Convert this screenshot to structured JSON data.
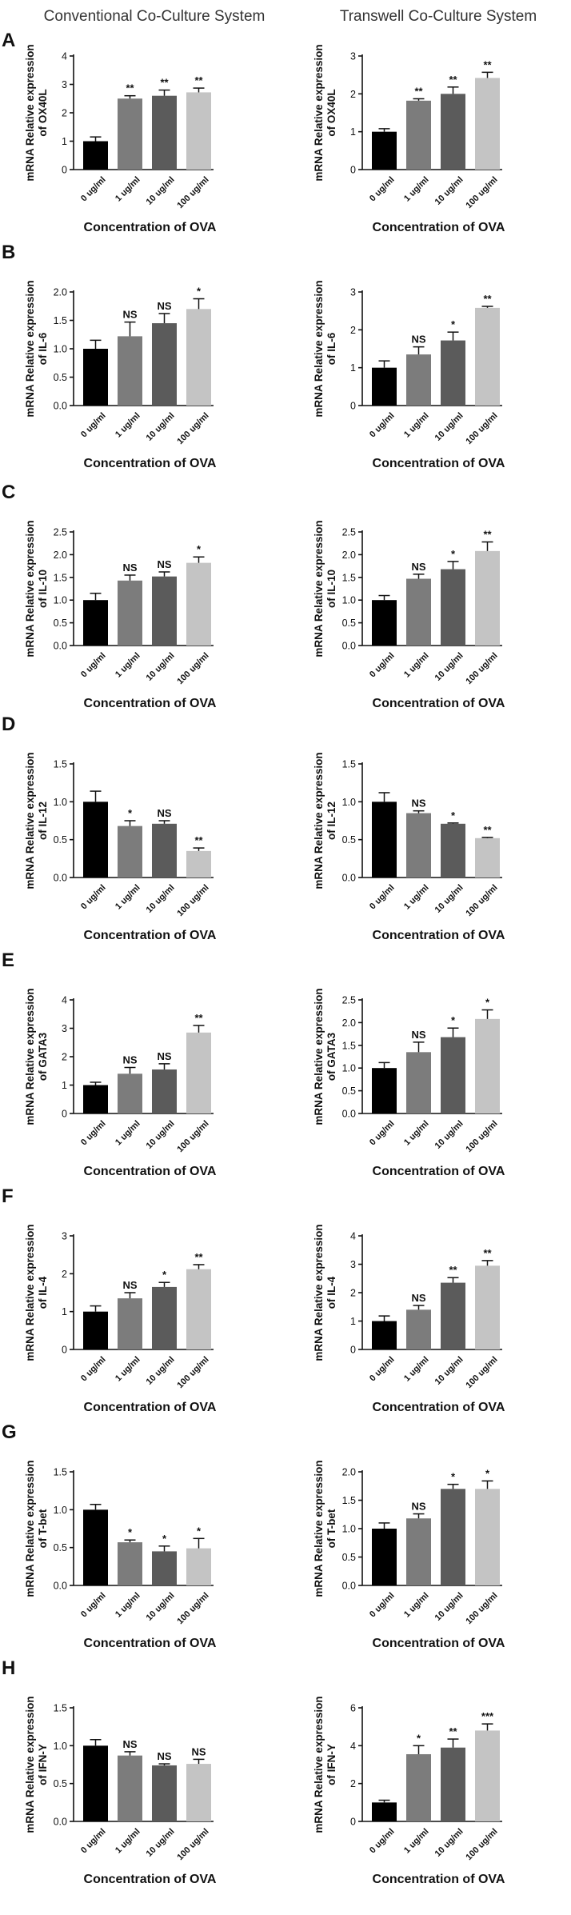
{
  "column_titles": [
    "Conventional Co-Culture System",
    "Transwell Co-Culture System"
  ],
  "colors": [
    "#000000",
    "#7c7c7c",
    "#5b5b5b",
    "#c4c4c4"
  ],
  "chart_data": [
    {
      "panel": "A",
      "type": "bar",
      "title": "Conventional Co-Culture System",
      "ylabel": "mRNA Relative expression of OX40L",
      "xlabel": "Concentration of OVA",
      "categories": [
        "0 ug/ml",
        "1 ug/ml",
        "10 ug/ml",
        "100 ug/ml"
      ],
      "values": [
        1.0,
        2.5,
        2.6,
        2.72
      ],
      "errors": [
        0.15,
        0.1,
        0.2,
        0.15
      ],
      "significance": [
        "",
        "**",
        "**",
        "**"
      ],
      "ylim": [
        0,
        4
      ],
      "yticks": [
        "0",
        "1",
        "2",
        "3",
        "4"
      ]
    },
    {
      "panel": "A",
      "type": "bar",
      "title": "Transwell Co-Culture System",
      "ylabel": "mRNA Relative expression of OX40L",
      "xlabel": "Concentration of OVA",
      "categories": [
        "0 ug/ml",
        "1 ug/ml",
        "10 ug/ml",
        "100 ug/ml"
      ],
      "values": [
        1.0,
        1.82,
        2.0,
        2.42
      ],
      "errors": [
        0.08,
        0.05,
        0.18,
        0.15
      ],
      "significance": [
        "",
        "**",
        "**",
        "**"
      ],
      "ylim": [
        0,
        3
      ],
      "yticks": [
        "0",
        "1",
        "2",
        "3"
      ]
    },
    {
      "panel": "B",
      "type": "bar",
      "ylabel": "mRNA Relative expression of IL-6",
      "xlabel": "Concentration of OVA",
      "categories": [
        "0 ug/ml",
        "1 ug/ml",
        "10 ug/ml",
        "100 ug/ml"
      ],
      "values": [
        1.0,
        1.22,
        1.45,
        1.7
      ],
      "errors": [
        0.15,
        0.25,
        0.17,
        0.18
      ],
      "significance": [
        "",
        "NS",
        "NS",
        "*"
      ],
      "ylim": [
        0,
        2.0
      ],
      "yticks": [
        "0.0",
        "0.5",
        "1.0",
        "1.5",
        "2.0"
      ]
    },
    {
      "panel": "B",
      "type": "bar",
      "ylabel": "mRNA Relative expression of IL-6",
      "xlabel": "Concentration of OVA",
      "categories": [
        "0 ug/ml",
        "1 ug/ml",
        "10 ug/ml",
        "100 ug/ml"
      ],
      "values": [
        1.0,
        1.35,
        1.72,
        2.58
      ],
      "errors": [
        0.18,
        0.2,
        0.22,
        0.04
      ],
      "significance": [
        "",
        "NS",
        "*",
        "**"
      ],
      "ylim": [
        0,
        3
      ],
      "yticks": [
        "0",
        "1",
        "2",
        "3"
      ]
    },
    {
      "panel": "C",
      "type": "bar",
      "ylabel": "mRNA Relative expression of IL-10",
      "xlabel": "Concentration of OVA",
      "categories": [
        "0 ug/ml",
        "1 ug/ml",
        "10 ug/ml",
        "100 ug/ml"
      ],
      "values": [
        1.0,
        1.43,
        1.52,
        1.82
      ],
      "errors": [
        0.15,
        0.12,
        0.1,
        0.13
      ],
      "significance": [
        "",
        "NS",
        "NS",
        "*"
      ],
      "ylim": [
        0,
        2.5
      ],
      "yticks": [
        "0.0",
        "0.5",
        "1.0",
        "1.5",
        "2.0",
        "2.5"
      ]
    },
    {
      "panel": "C",
      "type": "bar",
      "ylabel": "mRNA Relative expression of IL-10",
      "xlabel": "Concentration of OVA",
      "categories": [
        "0 ug/ml",
        "1 ug/ml",
        "10 ug/ml",
        "100 ug/ml"
      ],
      "values": [
        1.0,
        1.47,
        1.68,
        2.08
      ],
      "errors": [
        0.1,
        0.1,
        0.17,
        0.2
      ],
      "significance": [
        "",
        "NS",
        "*",
        "**"
      ],
      "ylim": [
        0,
        2.5
      ],
      "yticks": [
        "0.0",
        "0.5",
        "1.0",
        "1.5",
        "2.0",
        "2.5"
      ]
    },
    {
      "panel": "D",
      "type": "bar",
      "ylabel": "mRNA Relative expression of IL-12",
      "xlabel": "Concentration of OVA",
      "categories": [
        "0 ug/ml",
        "1 ug/ml",
        "10 ug/ml",
        "100 ug/ml"
      ],
      "values": [
        1.0,
        0.68,
        0.71,
        0.35
      ],
      "errors": [
        0.14,
        0.07,
        0.04,
        0.04
      ],
      "significance": [
        "",
        "*",
        "NS",
        "**"
      ],
      "ylim": [
        0,
        1.5
      ],
      "yticks": [
        "0.0",
        "0.5",
        "1.0",
        "1.5"
      ]
    },
    {
      "panel": "D",
      "type": "bar",
      "ylabel": "mRNA Relative expression of IL-12",
      "xlabel": "Concentration of OVA",
      "categories": [
        "0 ug/ml",
        "1 ug/ml",
        "10 ug/ml",
        "100 ug/ml"
      ],
      "values": [
        1.0,
        0.85,
        0.71,
        0.52
      ],
      "errors": [
        0.12,
        0.03,
        0.01,
        0.01
      ],
      "significance": [
        "",
        "NS",
        "*",
        "**"
      ],
      "ylim": [
        0,
        1.5
      ],
      "yticks": [
        "0.0",
        "0.5",
        "1.0",
        "1.5"
      ]
    },
    {
      "panel": "E",
      "type": "bar",
      "ylabel": "mRNA Relative expression of GATA3",
      "xlabel": "Concentration of OVA",
      "categories": [
        "0 ug/ml",
        "1 ug/ml",
        "10 ug/ml",
        "100 ug/ml"
      ],
      "values": [
        1.0,
        1.4,
        1.55,
        2.85
      ],
      "errors": [
        0.1,
        0.22,
        0.2,
        0.25
      ],
      "significance": [
        "",
        "NS",
        "NS",
        "**"
      ],
      "ylim": [
        0,
        4
      ],
      "yticks": [
        "0",
        "1",
        "2",
        "3",
        "4"
      ]
    },
    {
      "panel": "E",
      "type": "bar",
      "ylabel": "mRNA Relative expression of GATA3",
      "xlabel": "Concentration of OVA",
      "categories": [
        "0 ug/ml",
        "1 ug/ml",
        "10 ug/ml",
        "100 ug/ml"
      ],
      "values": [
        1.0,
        1.35,
        1.68,
        2.08
      ],
      "errors": [
        0.12,
        0.22,
        0.2,
        0.2
      ],
      "significance": [
        "",
        "NS",
        "*",
        "*"
      ],
      "ylim": [
        0,
        2.5
      ],
      "yticks": [
        "0.0",
        "0.5",
        "1.0",
        "1.5",
        "2.0",
        "2.5"
      ]
    },
    {
      "panel": "F",
      "type": "bar",
      "ylabel": "mRNA Relative expression of IL-4",
      "xlabel": "Concentration of OVA",
      "categories": [
        "0 ug/ml",
        "1 ug/ml",
        "10 ug/ml",
        "100 ug/ml"
      ],
      "values": [
        1.0,
        1.35,
        1.65,
        2.12
      ],
      "errors": [
        0.15,
        0.15,
        0.12,
        0.12
      ],
      "significance": [
        "",
        "NS",
        "*",
        "**"
      ],
      "ylim": [
        0,
        3
      ],
      "yticks": [
        "0",
        "1",
        "2",
        "3"
      ]
    },
    {
      "panel": "F",
      "type": "bar",
      "ylabel": "mRNA Relative expression of IL-4",
      "xlabel": "Concentration of OVA",
      "categories": [
        "0 ug/ml",
        "1 ug/ml",
        "10 ug/ml",
        "100 ug/ml"
      ],
      "values": [
        1.0,
        1.4,
        2.35,
        2.95
      ],
      "errors": [
        0.18,
        0.15,
        0.18,
        0.18
      ],
      "significance": [
        "",
        "NS",
        "**",
        "**"
      ],
      "ylim": [
        0,
        4
      ],
      "yticks": [
        "0",
        "1",
        "2",
        "3",
        "4"
      ]
    },
    {
      "panel": "G",
      "type": "bar",
      "ylabel": "mRNA Relative expression of T-bet",
      "xlabel": "Concentration of OVA",
      "categories": [
        "0 ug/ml",
        "1 ug/ml",
        "10 ug/ml",
        "100 ug/ml"
      ],
      "values": [
        1.0,
        0.57,
        0.45,
        0.49
      ],
      "errors": [
        0.07,
        0.03,
        0.07,
        0.13
      ],
      "significance": [
        "",
        "*",
        "*",
        "*"
      ],
      "ylim": [
        0,
        1.5
      ],
      "yticks": [
        "0.0",
        "0.5",
        "1.0",
        "1.5"
      ]
    },
    {
      "panel": "G",
      "type": "bar",
      "ylabel": "mRNA Relative expression of T-bet",
      "xlabel": "Concentration of OVA",
      "categories": [
        "0 ug/ml",
        "1 ug/ml",
        "10 ug/ml",
        "100 ug/ml"
      ],
      "values": [
        1.0,
        1.18,
        1.7,
        1.7
      ],
      "errors": [
        0.1,
        0.08,
        0.08,
        0.14
      ],
      "significance": [
        "",
        "NS",
        "*",
        "*"
      ],
      "ylim": [
        0,
        2.0
      ],
      "yticks": [
        "0.0",
        "0.5",
        "1.0",
        "1.5",
        "2.0"
      ]
    },
    {
      "panel": "H",
      "type": "bar",
      "ylabel": "mRNA Relative expression of IFN-Y",
      "xlabel": "Concentration of OVA",
      "categories": [
        "0 ug/ml",
        "1 ug/ml",
        "10 ug/ml",
        "100 ug/ml"
      ],
      "values": [
        1.0,
        0.87,
        0.74,
        0.76
      ],
      "errors": [
        0.08,
        0.05,
        0.02,
        0.06
      ],
      "significance": [
        "",
        "NS",
        "NS",
        "NS"
      ],
      "ylim": [
        0,
        1.5
      ],
      "yticks": [
        "0.0",
        "0.5",
        "1.0",
        "1.5"
      ]
    },
    {
      "panel": "H",
      "type": "bar",
      "ylabel": "mRNA Relative expression of IFN-Y",
      "xlabel": "Concentration of OVA",
      "categories": [
        "0 ug/ml",
        "1 ug/ml",
        "10 ug/ml",
        "100 ug/ml"
      ],
      "values": [
        1.0,
        3.55,
        3.9,
        4.8
      ],
      "errors": [
        0.12,
        0.45,
        0.45,
        0.35
      ],
      "significance": [
        "",
        "*",
        "**",
        "***"
      ],
      "ylim": [
        0,
        6
      ],
      "yticks": [
        "0",
        "2",
        "4",
        "6"
      ]
    }
  ]
}
